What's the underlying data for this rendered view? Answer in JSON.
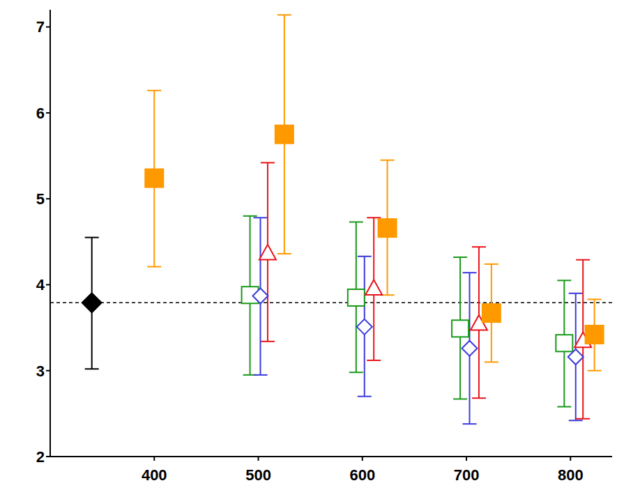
{
  "chart_data": {
    "type": "scatter",
    "xlim": [
      300,
      840
    ],
    "xticks": [
      400,
      500,
      600,
      700,
      800
    ],
    "ylim": [
      2,
      7.2
    ],
    "yticks": [
      2,
      3,
      4,
      5,
      6,
      7
    ],
    "reference_line": 3.79,
    "series": [
      {
        "color": "#000000",
        "marker": "filled_diamond",
        "x": [
          340
        ],
        "values": [
          3.79
        ],
        "error_low": [
          3.02
        ],
        "error_high": [
          4.55
        ]
      },
      {
        "color": "#1a9a1a",
        "marker": "open_square",
        "x": [
          492,
          594,
          694,
          794
        ],
        "values": [
          3.88,
          3.85,
          3.49,
          3.32
        ],
        "error_low": [
          2.95,
          2.98,
          2.67,
          2.58
        ],
        "error_high": [
          4.8,
          4.73,
          4.32,
          4.05
        ]
      },
      {
        "color": "#3b3bdd",
        "marker": "open_diamond",
        "x": [
          502,
          602,
          703,
          805
        ],
        "values": [
          3.87,
          3.51,
          3.26,
          3.16
        ],
        "error_low": [
          2.95,
          2.7,
          2.38,
          2.42
        ],
        "error_high": [
          4.78,
          4.33,
          4.14,
          3.9
        ]
      },
      {
        "color": "#e8141a",
        "marker": "open_triangle",
        "x": [
          509,
          611,
          712,
          812
        ],
        "values": [
          4.37,
          3.96,
          3.55,
          3.35
        ],
        "error_low": [
          3.34,
          3.12,
          2.68,
          2.44
        ],
        "error_high": [
          5.42,
          4.78,
          4.44,
          4.29
        ]
      },
      {
        "color": "#ff9900",
        "marker": "filled_square",
        "x": [
          400,
          525,
          624,
          724,
          823
        ],
        "values": [
          5.24,
          5.75,
          4.66,
          3.67,
          3.42
        ],
        "error_low": [
          4.21,
          4.36,
          3.88,
          3.1,
          3.0
        ],
        "error_high": [
          6.26,
          7.14,
          5.45,
          4.24,
          3.83
        ]
      }
    ]
  }
}
